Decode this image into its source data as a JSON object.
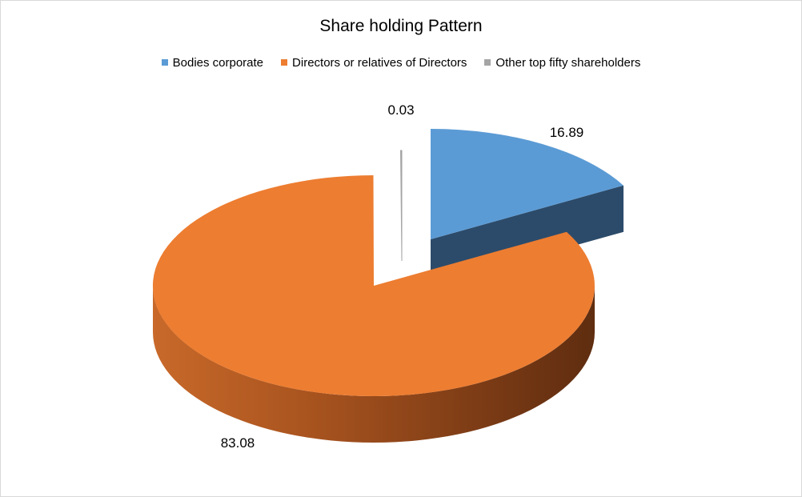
{
  "chart_data": {
    "type": "pie",
    "title": "Share holding Pattern",
    "legend_position": "top",
    "series": [
      {
        "name": "Bodies corporate",
        "value": 16.89,
        "label": "16.89",
        "color": "#5b9bd5",
        "side_color": "#2c4b6a"
      },
      {
        "name": "Directors or relatives of Directors",
        "value": 83.08,
        "label": "83.08",
        "color": "#ed7d31",
        "side_color": "#9e4a1a"
      },
      {
        "name": "Other top fifty shareholders",
        "value": 0.03,
        "label": "0.03",
        "color": "#a5a5a5",
        "side_color": "#6f6f6f"
      }
    ]
  }
}
